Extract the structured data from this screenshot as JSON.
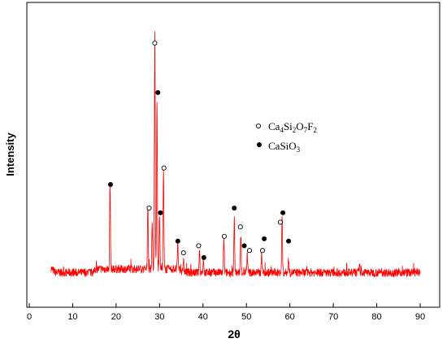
{
  "chart_data": {
    "type": "line",
    "title": "",
    "xlabel": "2θ",
    "ylabel": "Intensity",
    "xlim": [
      0,
      90
    ],
    "x_ticks": [
      "0",
      "10",
      "20",
      "30",
      "40",
      "50",
      "60",
      "70",
      "80",
      "90"
    ],
    "y_ticks_shown": false,
    "grid": false,
    "line_color": "#ff0000",
    "marker_color": "#000000",
    "baseline_intensity": 0.04,
    "peaks": [
      {
        "x": 18.6,
        "y": 0.37
      },
      {
        "x": 27.3,
        "y": 0.28
      },
      {
        "x": 28.3,
        "y": 0.21
      },
      {
        "x": 28.9,
        "y": 1.0
      },
      {
        "x": 29.4,
        "y": 0.72
      },
      {
        "x": 30.0,
        "y": 0.24
      },
      {
        "x": 30.9,
        "y": 0.42
      },
      {
        "x": 34.2,
        "y": 0.11
      },
      {
        "x": 35.5,
        "y": 0.06
      },
      {
        "x": 39.2,
        "y": 0.1
      },
      {
        "x": 40.1,
        "y": 0.06
      },
      {
        "x": 44.8,
        "y": 0.15
      },
      {
        "x": 47.2,
        "y": 0.23
      },
      {
        "x": 48.7,
        "y": 0.16
      },
      {
        "x": 50.2,
        "y": 0.08
      },
      {
        "x": 53.5,
        "y": 0.09
      },
      {
        "x": 58.2,
        "y": 0.24
      },
      {
        "x": 59.7,
        "y": 0.06
      },
      {
        "x": 76.0,
        "y": 0.04
      }
    ],
    "markers": [
      {
        "x": 28.9,
        "y": 1.0,
        "phase": "Ca4Si2O7F2"
      },
      {
        "x": 29.6,
        "y": 0.79,
        "phase": "CaSiO3"
      },
      {
        "x": 18.7,
        "y": 0.4,
        "phase": "CaSiO3"
      },
      {
        "x": 31.0,
        "y": 0.47,
        "phase": "Ca4Si2O7F2"
      },
      {
        "x": 27.6,
        "y": 0.3,
        "phase": "Ca4Si2O7F2"
      },
      {
        "x": 30.2,
        "y": 0.28,
        "phase": "CaSiO3"
      },
      {
        "x": 34.2,
        "y": 0.16,
        "phase": "CaSiO3"
      },
      {
        "x": 35.5,
        "y": 0.11,
        "phase": "Ca4Si2O7F2"
      },
      {
        "x": 39.0,
        "y": 0.14,
        "phase": "Ca4Si2O7F2"
      },
      {
        "x": 40.2,
        "y": 0.09,
        "phase": "CaSiO3"
      },
      {
        "x": 44.9,
        "y": 0.18,
        "phase": "Ca4Si2O7F2"
      },
      {
        "x": 47.2,
        "y": 0.3,
        "phase": "CaSiO3"
      },
      {
        "x": 48.6,
        "y": 0.22,
        "phase": "Ca4Si2O7F2"
      },
      {
        "x": 49.5,
        "y": 0.14,
        "phase": "CaSiO3"
      },
      {
        "x": 50.7,
        "y": 0.12,
        "phase": "Ca4Si2O7F2"
      },
      {
        "x": 53.7,
        "y": 0.12,
        "phase": "Ca4Si2O7F2"
      },
      {
        "x": 54.1,
        "y": 0.17,
        "phase": "CaSiO3"
      },
      {
        "x": 57.8,
        "y": 0.24,
        "phase": "Ca4Si2O7F2"
      },
      {
        "x": 58.4,
        "y": 0.28,
        "phase": "CaSiO3"
      },
      {
        "x": 59.7,
        "y": 0.16,
        "phase": "CaSiO3"
      }
    ],
    "legend": {
      "placement": "upper-right",
      "entries": [
        {
          "symbol": "open-circle",
          "label": "Ca4Si2O7F2",
          "label_parts": [
            [
              "Ca",
              ""
            ],
            [
              "4",
              "sub"
            ],
            [
              "Si",
              ""
            ],
            [
              "2",
              "sub"
            ],
            [
              "O",
              ""
            ],
            [
              "7",
              "sub"
            ],
            [
              "F",
              ""
            ],
            [
              "2",
              "sub"
            ]
          ]
        },
        {
          "symbol": "filled-circle",
          "label": "CaSiO3",
          "label_parts": [
            [
              "CaSiO",
              ""
            ],
            [
              "3",
              "sub"
            ]
          ]
        }
      ]
    }
  }
}
